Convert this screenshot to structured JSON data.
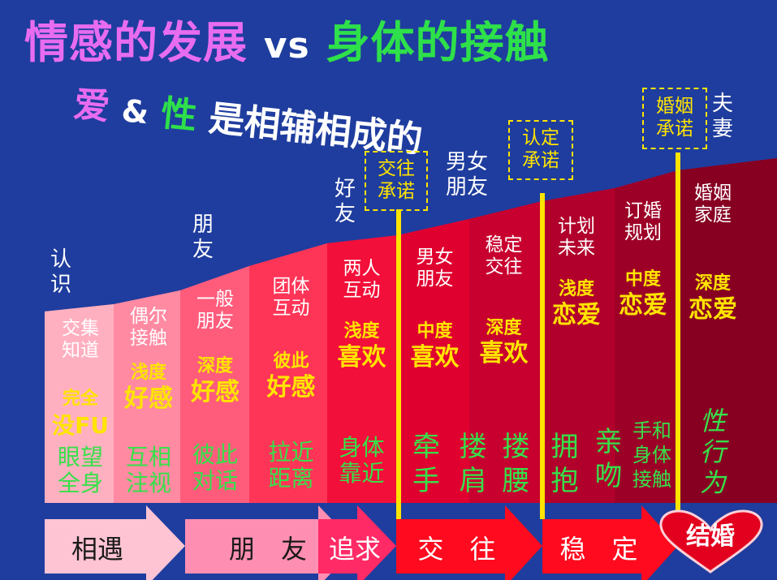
{
  "title": {
    "part1": "情感的发展",
    "vs": "vs",
    "part2": "身体的接触"
  },
  "subtitle": {
    "ai": "爱",
    "amp": "&",
    "xing": "性",
    "rest": "是相辅相成的"
  },
  "above_labels": {
    "renshi": "认\n识",
    "pengyou": "朋\n友",
    "haoyou": "好\n友",
    "nanv_pengyou": "男女\n朋友",
    "fuqi": "夫\n妻"
  },
  "commitments": {
    "jiaowang": "交往\n承诺",
    "rending": "认定\n承诺",
    "hunyin": "婚姻\n承诺"
  },
  "columns": [
    {
      "stage": "交集\n知道",
      "level_small": "完全",
      "level_big": "没FU",
      "touch": "眼望\n全身"
    },
    {
      "stage": "偶尔\n接触",
      "level_small": "浅度",
      "level_big": "好感",
      "touch": "互相\n注视"
    },
    {
      "stage": "一般\n朋友",
      "level_small": "深度",
      "level_big": "好感",
      "touch": "彼此\n对话"
    },
    {
      "stage": "团体\n互动",
      "level_small": "彼此",
      "level_big": "好感",
      "touch": "拉近\n距离"
    },
    {
      "stage": "两人\n互动",
      "level_small": "浅度",
      "level_big": "喜欢",
      "touch": "身体\n靠近"
    },
    {
      "stage": "男女\n朋友",
      "level_small": "中度",
      "level_big": "喜欢",
      "touch": "牵\n手"
    },
    {
      "stage": "稳定\n交往",
      "level_small": "深度",
      "level_big": "喜欢",
      "touch": "搂\n肩"
    },
    {
      "stage": "",
      "level_small": "",
      "level_big": "",
      "touch": "搂\n腰"
    },
    {
      "stage": "计划\n未来",
      "level_small": "浅度",
      "level_big": "恋爱",
      "touch": "拥\n抱"
    },
    {
      "stage": "",
      "level_small": "",
      "level_big": "",
      "touch": "亲\n吻"
    },
    {
      "stage": "订婚\n规划",
      "level_small": "中度",
      "level_big": "恋爱",
      "touch": "手和\n身体\n接触"
    },
    {
      "stage": "婚姻\n家庭",
      "level_small": "深度",
      "level_big": "恋爱",
      "touch": "性\n行\n为"
    }
  ],
  "arrows": {
    "xiangyu": "相遇",
    "pengyou": "朋　友",
    "zhuiqiu": "追求",
    "jiaowang": "交　往",
    "wending": "稳　定",
    "jiehun": "结婚"
  },
  "colors": {
    "background": "#1f3d9e",
    "accent_yellow": "#ffe400",
    "touch_green": "#36e04a",
    "title_pink": "#e86cf0",
    "title_green": "#2ee04a"
  }
}
